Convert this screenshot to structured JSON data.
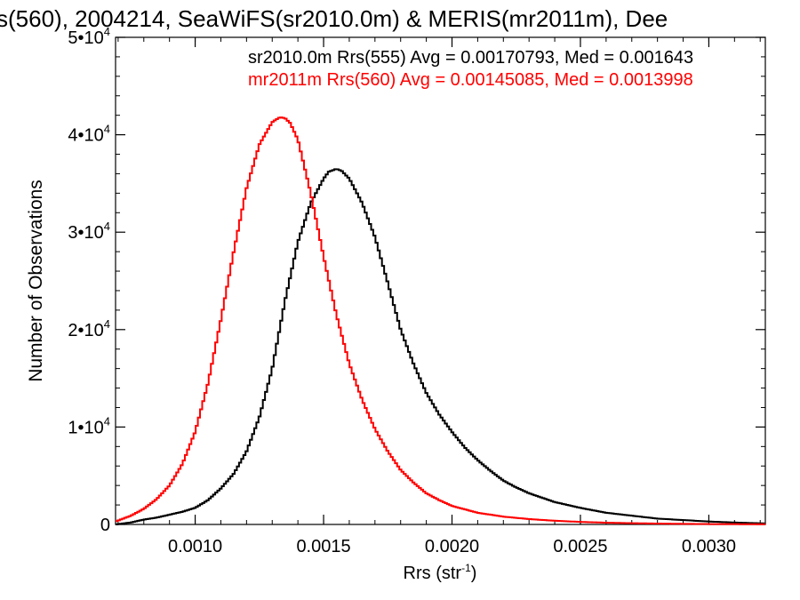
{
  "chart_data": {
    "type": "line",
    "title": "s(560), 2004214, SeaWiFS(sr2010.0m) & MERIS(mr2011m), Dee",
    "xlabel": "Rrs (str",
    "xlabel_sup": "-1",
    "xlabel_close": ")",
    "ylabel": "Number of Observations",
    "xlim": [
      0.00069,
      0.00322
    ],
    "ylim": [
      0,
      50000
    ],
    "x_ticks": [
      {
        "value": 0.001,
        "label": "0.0010"
      },
      {
        "value": 0.0015,
        "label": "0.0015"
      },
      {
        "value": 0.002,
        "label": "0.0020"
      },
      {
        "value": 0.0025,
        "label": "0.0025"
      },
      {
        "value": 0.003,
        "label": "0.0030"
      }
    ],
    "y_ticks": [
      {
        "value": 0,
        "label": "0",
        "exp": ""
      },
      {
        "value": 10000,
        "label": "1•10",
        "exp": "4"
      },
      {
        "value": 20000,
        "label": "2•10",
        "exp": "4"
      },
      {
        "value": 30000,
        "label": "3•10",
        "exp": "4"
      },
      {
        "value": 40000,
        "label": "4•10",
        "exp": "4"
      },
      {
        "value": 50000,
        "label": "5•10",
        "exp": "4"
      }
    ],
    "grid": false,
    "legend_placement": "top-right",
    "annotations": [
      {
        "text": "sr2010.0m Rrs(555) Avg = 0.00170793, Med = 0.001643",
        "color": "#000000"
      },
      {
        "text": "mr2011m Rrs(560) Avg = 0.00145085, Med = 0.0013998",
        "color": "#ff0000"
      }
    ],
    "series": [
      {
        "color": "#000000",
        "x": [
          0.00069,
          0.00075,
          0.0008,
          0.00085,
          0.0009,
          0.00095,
          0.001,
          0.00105,
          0.0011,
          0.00115,
          0.0012,
          0.00125,
          0.0013,
          0.00135,
          0.0014,
          0.00145,
          0.0015,
          0.00152,
          0.00155,
          0.00157,
          0.0016,
          0.00163,
          0.00165,
          0.0017,
          0.00175,
          0.0018,
          0.00185,
          0.0019,
          0.00195,
          0.002,
          0.00205,
          0.0021,
          0.00215,
          0.0022,
          0.00225,
          0.0023,
          0.0024,
          0.0025,
          0.0026,
          0.0027,
          0.0028,
          0.0029,
          0.003,
          0.0031,
          0.00322
        ],
        "y": [
          0,
          200,
          500,
          700,
          1000,
          1300,
          1700,
          2500,
          3700,
          5200,
          7500,
          11000,
          16000,
          23000,
          29000,
          33000,
          35500,
          36200,
          36500,
          36300,
          35500,
          34000,
          33000,
          29500,
          24800,
          20000,
          16500,
          13500,
          11300,
          9500,
          7900,
          6600,
          5500,
          4500,
          3800,
          3200,
          2300,
          1700,
          1200,
          900,
          600,
          450,
          300,
          200,
          100
        ]
      },
      {
        "color": "#ff0000",
        "x": [
          0.00069,
          0.00075,
          0.0008,
          0.00085,
          0.0009,
          0.00095,
          0.001,
          0.00105,
          0.0011,
          0.00115,
          0.0012,
          0.00125,
          0.0013,
          0.00133,
          0.00135,
          0.00137,
          0.0014,
          0.00145,
          0.0015,
          0.00155,
          0.0016,
          0.00165,
          0.0017,
          0.00175,
          0.0018,
          0.00185,
          0.0019,
          0.00195,
          0.002,
          0.0021,
          0.0022,
          0.0023,
          0.0024,
          0.0025,
          0.0026,
          0.0027,
          0.0028,
          0.0029,
          0.003,
          0.0031,
          0.00322
        ],
        "y": [
          300,
          900,
          1600,
          2600,
          4000,
          6200,
          9500,
          14500,
          21000,
          28000,
          34500,
          39000,
          41300,
          41800,
          41700,
          41200,
          39500,
          34000,
          27500,
          21500,
          16500,
          12800,
          9800,
          7500,
          5600,
          4300,
          3200,
          2500,
          1900,
          1200,
          800,
          550,
          380,
          260,
          180,
          130,
          90,
          60,
          40,
          30,
          20
        ]
      }
    ]
  }
}
